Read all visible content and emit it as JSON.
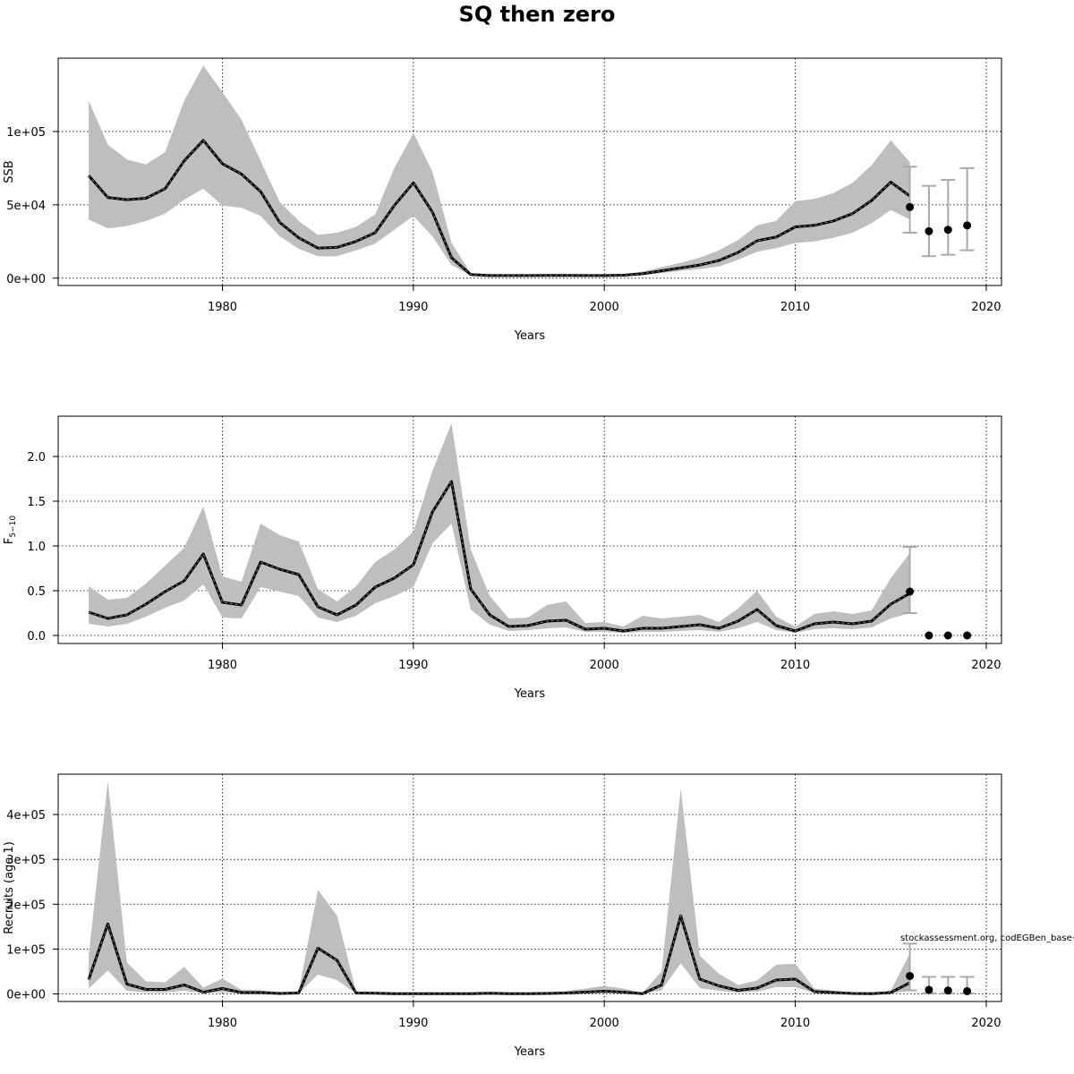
{
  "figure": {
    "title": "SQ then zero",
    "credit": "stockassessment.org, codEGBen_base→"
  },
  "chart_data": [
    {
      "type": "line",
      "ylabel": "SSB",
      "xlabel": "Years",
      "xlim": [
        1971.4,
        2020.8
      ],
      "ylim": [
        -5000,
        150000
      ],
      "x_ticks": [
        1980,
        1990,
        2000,
        2010,
        2020
      ],
      "y_ticks": [
        0,
        50000,
        100000
      ],
      "y_tick_labels": [
        "0e+00",
        "5e+04",
        "1e+05"
      ],
      "grid": true,
      "years": [
        1973,
        1974,
        1975,
        1976,
        1977,
        1978,
        1979,
        1980,
        1981,
        1982,
        1983,
        1984,
        1985,
        1986,
        1987,
        1988,
        1989,
        1990,
        1991,
        1992,
        1993,
        1994,
        1995,
        1996,
        1997,
        1998,
        1999,
        2000,
        2001,
        2002,
        2003,
        2004,
        2005,
        2006,
        2007,
        2008,
        2009,
        2010,
        2011,
        2012,
        2013,
        2014,
        2015,
        2016
      ],
      "estimate": [
        70000,
        55000,
        53500,
        54500,
        61000,
        80000,
        94000,
        78000,
        71000,
        59000,
        38000,
        27500,
        20500,
        21000,
        25000,
        31000,
        49500,
        65000,
        45000,
        14000,
        2500,
        1800,
        1800,
        1800,
        1900,
        1900,
        1800,
        1800,
        2000,
        3000,
        5000,
        7000,
        9000,
        12000,
        17500,
        25500,
        28000,
        35000,
        36000,
        39000,
        44000,
        53000,
        65500,
        56000
      ],
      "upper": [
        121000,
        91000,
        81000,
        77500,
        86000,
        121000,
        145000,
        127000,
        108000,
        80000,
        52000,
        39000,
        29500,
        31000,
        35000,
        43500,
        75000,
        99000,
        72500,
        24000,
        3500,
        2200,
        2200,
        2300,
        2400,
        2400,
        2300,
        2300,
        2800,
        4500,
        7500,
        10500,
        14000,
        19000,
        26000,
        36000,
        39000,
        52500,
        54000,
        58000,
        65000,
        77000,
        94000,
        79000
      ],
      "lower": [
        40000,
        34000,
        35500,
        39000,
        44000,
        53500,
        61000,
        49500,
        48000,
        42500,
        28500,
        20000,
        15000,
        15000,
        19000,
        23500,
        33000,
        42500,
        28500,
        9000,
        1800,
        1300,
        1300,
        1300,
        1400,
        1400,
        1300,
        1300,
        1500,
        2200,
        3500,
        5000,
        6200,
        8000,
        12500,
        18000,
        20500,
        24000,
        25000,
        27500,
        31000,
        37500,
        46500,
        40000
      ],
      "forecast": [
        {
          "year": 2016,
          "value": 48500,
          "low": 31000,
          "high": 76000
        },
        {
          "year": 2017,
          "value": 32000,
          "low": 15000,
          "high": 63000
        },
        {
          "year": 2018,
          "value": 33000,
          "low": 16000,
          "high": 67000
        },
        {
          "year": 2019,
          "value": 36000,
          "low": 19000,
          "high": 75000
        }
      ]
    },
    {
      "type": "line",
      "ylabel": "F5-10",
      "ylabel_main": "F",
      "ylabel_sub": "5−10",
      "xlabel": "Years",
      "xlim": [
        1971.4,
        2020.8
      ],
      "ylim": [
        -0.09,
        2.45
      ],
      "x_ticks": [
        1980,
        1990,
        2000,
        2010,
        2020
      ],
      "y_ticks": [
        0,
        0.5,
        1.0,
        1.5,
        2.0
      ],
      "y_tick_labels": [
        "0.0",
        "0.5",
        "1.0",
        "1.5",
        "2.0"
      ],
      "grid": true,
      "years": [
        1973,
        1974,
        1975,
        1976,
        1977,
        1978,
        1979,
        1980,
        1981,
        1982,
        1983,
        1984,
        1985,
        1986,
        1987,
        1988,
        1989,
        1990,
        1991,
        1992,
        1993,
        1994,
        1995,
        1996,
        1997,
        1998,
        1999,
        2000,
        2001,
        2002,
        2003,
        2004,
        2005,
        2006,
        2007,
        2008,
        2009,
        2010,
        2011,
        2012,
        2013,
        2014,
        2015,
        2016
      ],
      "estimate": [
        0.26,
        0.19,
        0.23,
        0.35,
        0.49,
        0.61,
        0.91,
        0.37,
        0.34,
        0.82,
        0.74,
        0.68,
        0.32,
        0.23,
        0.34,
        0.54,
        0.64,
        0.79,
        1.38,
        1.72,
        0.52,
        0.23,
        0.1,
        0.11,
        0.16,
        0.17,
        0.07,
        0.08,
        0.05,
        0.08,
        0.08,
        0.1,
        0.12,
        0.08,
        0.16,
        0.29,
        0.11,
        0.05,
        0.13,
        0.15,
        0.13,
        0.16,
        0.35,
        0.47
      ],
      "upper": [
        0.55,
        0.4,
        0.42,
        0.58,
        0.78,
        0.98,
        1.44,
        0.66,
        0.6,
        1.25,
        1.12,
        1.05,
        0.52,
        0.38,
        0.55,
        0.82,
        0.96,
        1.16,
        1.84,
        2.37,
        0.96,
        0.44,
        0.19,
        0.2,
        0.34,
        0.38,
        0.14,
        0.15,
        0.1,
        0.22,
        0.19,
        0.21,
        0.23,
        0.15,
        0.3,
        0.5,
        0.21,
        0.1,
        0.24,
        0.27,
        0.24,
        0.28,
        0.64,
        0.92
      ],
      "lower": [
        0.13,
        0.1,
        0.13,
        0.21,
        0.31,
        0.39,
        0.57,
        0.2,
        0.19,
        0.54,
        0.49,
        0.44,
        0.2,
        0.15,
        0.22,
        0.36,
        0.44,
        0.54,
        1.03,
        1.25,
        0.29,
        0.12,
        0.05,
        0.06,
        0.08,
        0.09,
        0.04,
        0.04,
        0.03,
        0.04,
        0.04,
        0.05,
        0.06,
        0.04,
        0.08,
        0.15,
        0.06,
        0.03,
        0.07,
        0.08,
        0.07,
        0.09,
        0.19,
        0.25
      ],
      "forecast": [
        {
          "year": 2016,
          "value": 0.49,
          "low": 0.25,
          "high": 0.99
        },
        {
          "year": 2017,
          "value": 0.0
        },
        {
          "year": 2018,
          "value": 0.0
        },
        {
          "year": 2019,
          "value": 0.0
        }
      ]
    },
    {
      "type": "line",
      "ylabel": "Recruits (age 1)",
      "xlabel": "Years",
      "xlim": [
        1971.4,
        2020.8
      ],
      "ylim": [
        -17000,
        490000
      ],
      "x_ticks": [
        1980,
        1990,
        2000,
        2010,
        2020
      ],
      "y_ticks": [
        0,
        100000,
        200000,
        300000,
        400000
      ],
      "y_tick_labels": [
        "0e+00",
        "1e+05",
        "2e+05",
        "3e+05",
        "4e+05"
      ],
      "grid": true,
      "years": [
        1973,
        1974,
        1975,
        1976,
        1977,
        1978,
        1979,
        1980,
        1981,
        1982,
        1983,
        1984,
        1985,
        1986,
        1987,
        1988,
        1989,
        1990,
        1991,
        1992,
        1993,
        1994,
        1995,
        1996,
        1997,
        1998,
        1999,
        2000,
        2001,
        2002,
        2003,
        2004,
        2005,
        2006,
        2007,
        2008,
        2009,
        2010,
        2011,
        2012,
        2013,
        2014,
        2015,
        2016
      ],
      "estimate": [
        32000,
        156000,
        22000,
        10000,
        10000,
        20000,
        4000,
        12000,
        3000,
        3000,
        1000,
        2000,
        102000,
        75000,
        2000,
        1500,
        500,
        500,
        500,
        500,
        500,
        1500,
        500,
        500,
        1000,
        2000,
        4000,
        6000,
        4000,
        500,
        20000,
        174000,
        33000,
        18000,
        8000,
        13000,
        31000,
        33000,
        5000,
        3000,
        1000,
        500,
        3000,
        25000
      ],
      "upper": [
        85000,
        475000,
        70000,
        28000,
        26000,
        60000,
        14000,
        34000,
        9000,
        8000,
        3000,
        6000,
        232000,
        175000,
        5000,
        4000,
        1500,
        1500,
        1500,
        1500,
        1500,
        4000,
        1500,
        1500,
        3000,
        6000,
        12000,
        18000,
        12000,
        2000,
        50000,
        458000,
        85000,
        45000,
        20000,
        30000,
        65000,
        67000,
        12000,
        7000,
        3000,
        1500,
        7000,
        90000
      ],
      "lower": [
        12000,
        52000,
        7000,
        3500,
        3500,
        7000,
        1500,
        4000,
        1000,
        1000,
        300,
        700,
        43000,
        31000,
        700,
        500,
        200,
        200,
        200,
        200,
        200,
        500,
        200,
        200,
        300,
        700,
        1300,
        2000,
        1300,
        200,
        8000,
        68000,
        13000,
        7000,
        3000,
        5000,
        15000,
        15000,
        2000,
        1000,
        300,
        200,
        1000,
        7000
      ],
      "forecast": [
        {
          "year": 2016,
          "value": 40000,
          "low": 8000,
          "high": 112000
        },
        {
          "year": 2017,
          "value": 9000,
          "low": 1500,
          "high": 38000
        },
        {
          "year": 2018,
          "value": 7500,
          "low": 1200,
          "high": 38000
        },
        {
          "year": 2019,
          "value": 6000,
          "low": 1000,
          "high": 38000
        }
      ]
    }
  ],
  "colors": {
    "band": "#bebebe",
    "line": "#000000",
    "dash": "#808080",
    "errorbar": "#aaaaaa",
    "grid": "#000000"
  }
}
